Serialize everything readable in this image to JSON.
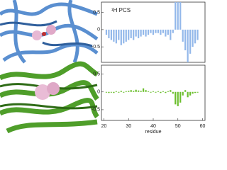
{
  "chart_data": [
    {
      "type": "bar",
      "annotation": "¹H PCS",
      "color": "#93b8ea",
      "x": [
        21,
        22,
        23,
        24,
        25,
        26,
        27,
        28,
        29,
        30,
        31,
        32,
        33,
        34,
        35,
        36,
        37,
        38,
        39,
        40,
        41,
        42,
        43,
        44,
        45,
        46,
        47,
        48,
        49,
        50,
        51,
        52,
        53,
        54,
        55,
        56,
        57,
        58
      ],
      "values": [
        -0.15,
        -0.25,
        -0.3,
        -0.35,
        -0.4,
        -0.3,
        -0.45,
        -0.4,
        -0.35,
        -0.3,
        -0.25,
        -0.3,
        -0.2,
        -0.25,
        -0.2,
        -0.15,
        -0.2,
        -0.15,
        -0.1,
        -0.15,
        -0.1,
        -0.1,
        -0.15,
        -0.1,
        -0.2,
        -0.15,
        -0.3,
        -0.1,
        0.8,
        0.8,
        0.8,
        -0.35,
        -0.6,
        -0.95,
        -0.7,
        -0.5,
        -0.4,
        -0.3
      ],
      "xlim": [
        19,
        61
      ],
      "ylim": [
        -0.95,
        0.8
      ],
      "yticks": [
        0.5,
        0,
        -0.5
      ]
    },
    {
      "type": "bar",
      "xlabel": "residue",
      "color": "#6cbf2e",
      "x": [
        21,
        22,
        23,
        24,
        25,
        26,
        27,
        28,
        29,
        30,
        31,
        32,
        33,
        34,
        35,
        36,
        37,
        38,
        39,
        40,
        41,
        42,
        43,
        44,
        45,
        46,
        47,
        48,
        49,
        50,
        51,
        52,
        53,
        54,
        55,
        56,
        57,
        58
      ],
      "values": [
        -0.02,
        -0.03,
        -0.02,
        -0.03,
        0.02,
        -0.02,
        0.03,
        -0.02,
        0.02,
        0.03,
        0.05,
        0.03,
        0.06,
        0.04,
        0.03,
        0.1,
        0.05,
        0.02,
        -0.02,
        0.02,
        -0.02,
        0.02,
        -0.03,
        0.02,
        -0.03,
        0.02,
        0.05,
        -0.05,
        -0.35,
        -0.4,
        -0.3,
        -0.1,
        0.05,
        -0.15,
        -0.1,
        -0.05,
        -0.03,
        -0.02
      ],
      "xlim": [
        19,
        61
      ],
      "ylim": [
        -0.8,
        0.75
      ],
      "yticks": [
        0.5,
        0,
        -0.5
      ],
      "xticks": [
        20,
        30,
        40,
        50,
        60
      ]
    }
  ]
}
